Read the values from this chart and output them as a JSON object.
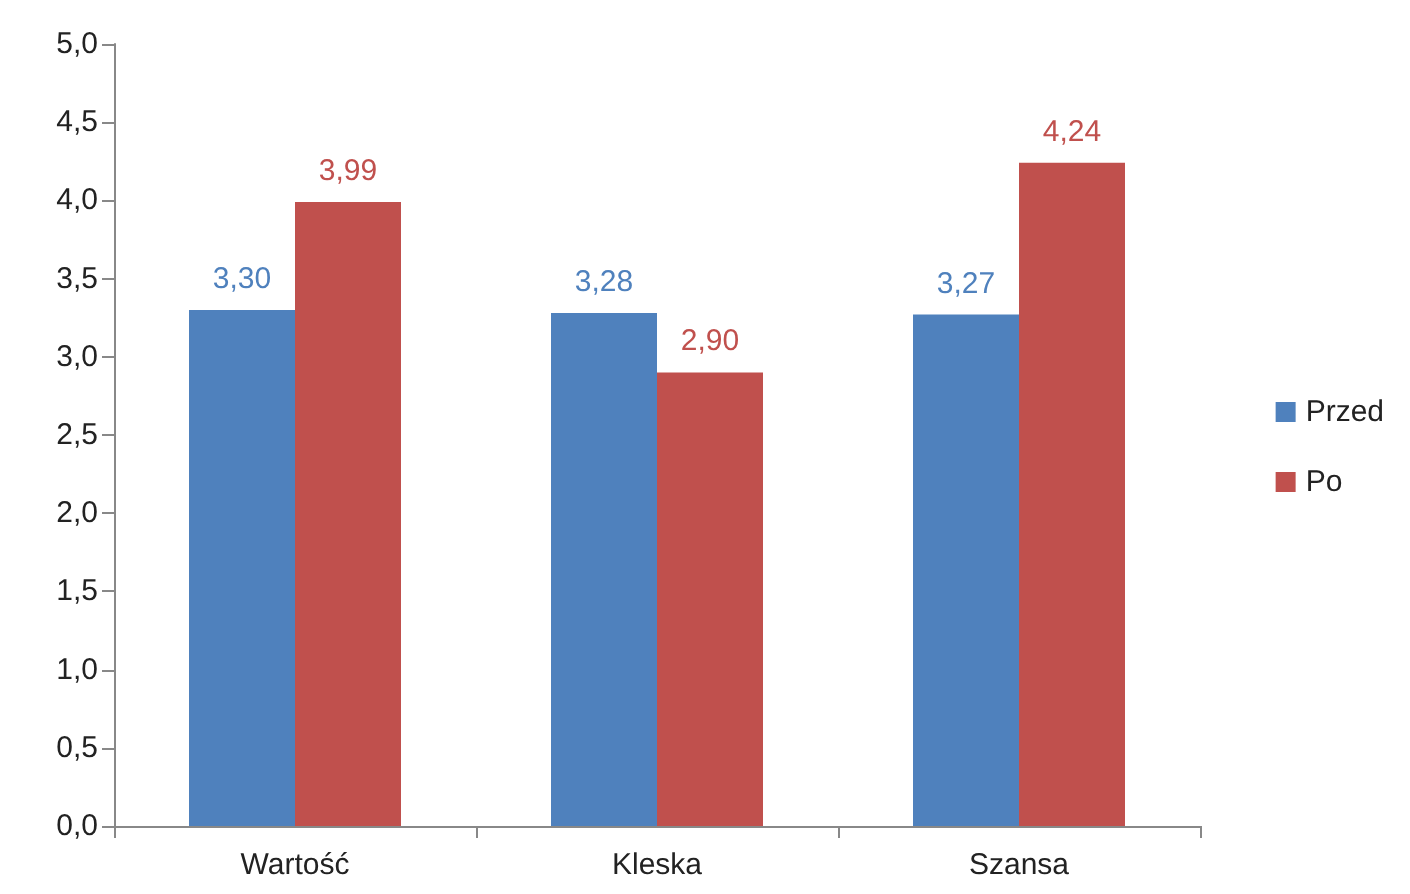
{
  "chart_data": {
    "type": "bar",
    "categories": [
      "Wartość",
      "Kleska",
      "Szansa"
    ],
    "series": [
      {
        "name": "Przed",
        "color": "#4f81bd",
        "values": [
          3.3,
          3.28,
          3.27
        ],
        "value_labels": [
          "3,30",
          "3,28",
          "3,27"
        ]
      },
      {
        "name": "Po",
        "color": "#c0504d",
        "values": [
          3.99,
          2.9,
          4.24
        ],
        "value_labels": [
          "3,99",
          "2,90",
          "4,24"
        ]
      }
    ],
    "ylim": [
      0,
      5
    ],
    "yticks": [
      {
        "value": 0,
        "label": "0,0"
      },
      {
        "value": 0.5,
        "label": "0,5"
      },
      {
        "value": 1,
        "label": "1,0"
      },
      {
        "value": 1.5,
        "label": "1,5"
      },
      {
        "value": 2,
        "label": "2,0"
      },
      {
        "value": 2.5,
        "label": "2,5"
      },
      {
        "value": 3,
        "label": "3,0"
      },
      {
        "value": 3.5,
        "label": "3,5"
      },
      {
        "value": 4,
        "label": "4,0"
      },
      {
        "value": 4.5,
        "label": "4,5"
      },
      {
        "value": 5,
        "label": "5,0"
      }
    ],
    "grid": false,
    "legend": "right"
  }
}
